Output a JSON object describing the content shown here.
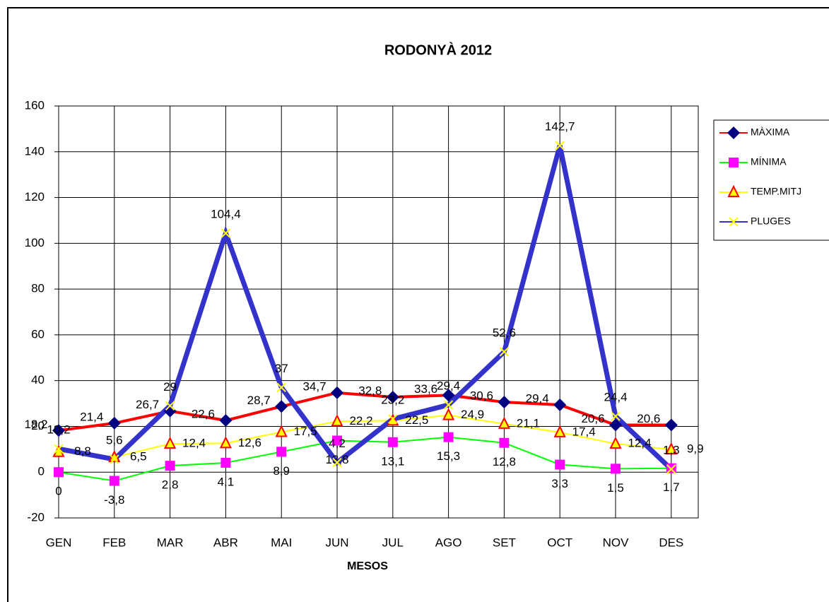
{
  "chart_data": {
    "type": "line",
    "title": "RODONYÀ 2012",
    "x_label": "MESOS",
    "categories": [
      "GEN",
      "FEB",
      "MAR",
      "ABR",
      "MAI",
      "JUN",
      "JUL",
      "AGO",
      "SET",
      "OCT",
      "NOV",
      "DES"
    ],
    "series": [
      {
        "name": "MÀXIMA",
        "color": "#ff0000",
        "marker": "diamond",
        "marker_color": "#000080",
        "values": [
          18.2,
          21.4,
          26.7,
          22.6,
          28.7,
          34.7,
          32.8,
          33.6,
          30.6,
          29.4,
          20.6,
          20.6
        ],
        "value_labels": [
          "18,2",
          "21,4",
          "26,7",
          "22,6",
          "28,7",
          "34,7",
          "32,8",
          "33,6",
          "30,6",
          "29,4",
          "20,6",
          "20,6"
        ]
      },
      {
        "name": "MÍNIMA",
        "color": "#00ff00",
        "marker": "square",
        "marker_color": "#ff00ff",
        "values": [
          0,
          -3.8,
          2.8,
          4.1,
          8.9,
          13.8,
          13.1,
          15.3,
          12.8,
          3.3,
          1.5,
          1.7
        ],
        "value_labels": [
          "0",
          "-3,8",
          "2,8",
          "4,1",
          "8,9",
          "13,8",
          "13,1",
          "15,3",
          "12,8",
          "3,3",
          "1,5",
          "1,7"
        ]
      },
      {
        "name": "TEMP.MITJ",
        "color": "#ffff00",
        "marker": "triangle",
        "marker_color": "#ff0000",
        "values": [
          8.8,
          6.5,
          12.4,
          12.6,
          17.5,
          22.2,
          22.5,
          24.9,
          21.1,
          17.4,
          12.4,
          9.9
        ],
        "value_labels": [
          "8,8",
          "6,5",
          "12,4",
          "12,6",
          "17,5",
          "22,2",
          "22,5",
          "24,9",
          "21,1",
          "17,4",
          "12,4",
          "9,9"
        ]
      },
      {
        "name": "PLUGES",
        "color": "#3333cc",
        "marker": "x",
        "marker_color": "#ffff00",
        "values": [
          10.2,
          5.6,
          29,
          104.4,
          37,
          4.2,
          23.2,
          29.4,
          52.6,
          142.7,
          24.4,
          1.3
        ],
        "value_labels": [
          "10,2",
          "5,6",
          "29",
          "104,4",
          "37",
          "4,2",
          "23,2",
          "29,4",
          "52,6",
          "142,7",
          "24,4",
          "1,3"
        ]
      }
    ],
    "ylim": [
      -20,
      160
    ],
    "yticks": [
      -20,
      0,
      20,
      40,
      60,
      80,
      100,
      120,
      140,
      160
    ],
    "grid": true,
    "legend": "right"
  }
}
